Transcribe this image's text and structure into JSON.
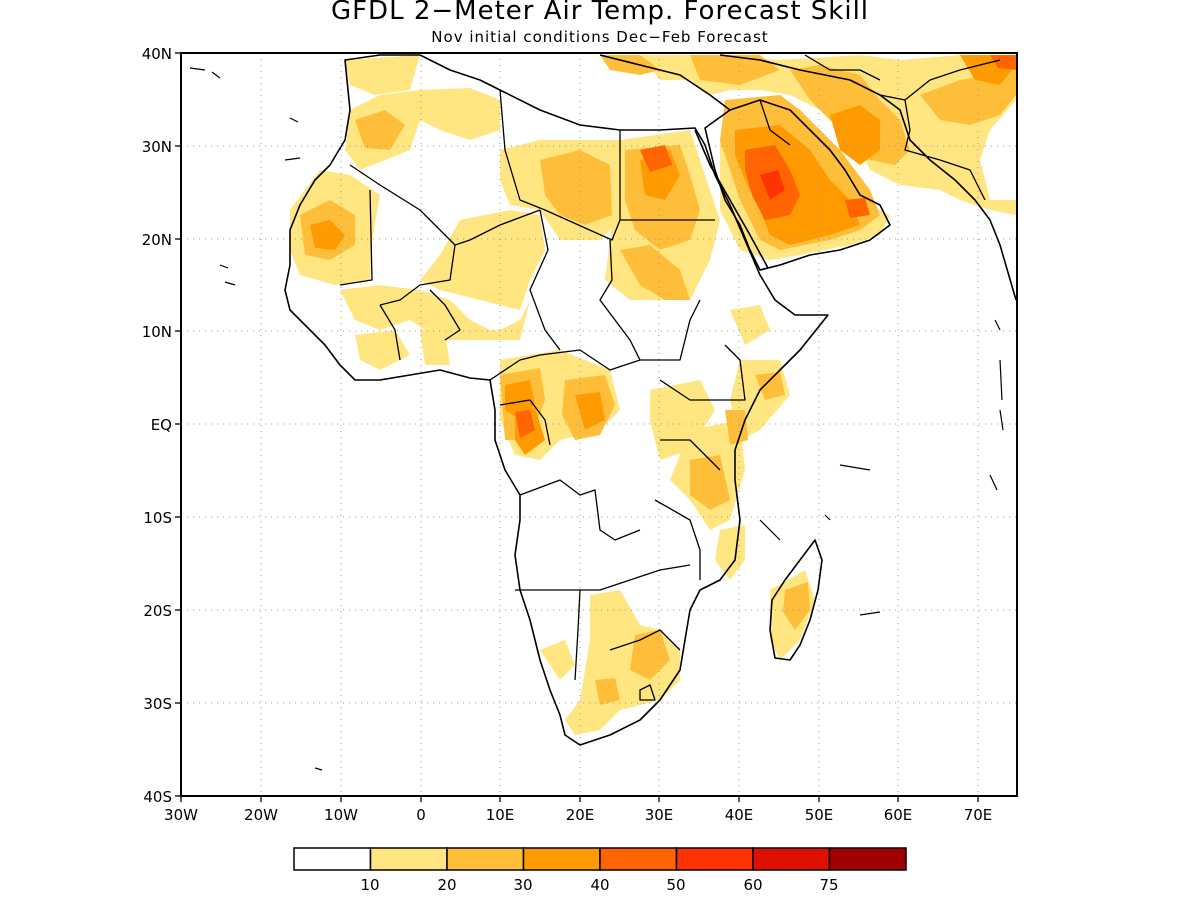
{
  "title": "GFDL 2−Meter Air Temp. Forecast Skill",
  "subtitle": "Nov initial conditions   Dec−Feb Forecast",
  "map": {
    "lat_ticks": [
      "40N",
      "30N",
      "20N",
      "10N",
      "EQ",
      "10S",
      "20S",
      "30S",
      "40S"
    ],
    "lon_ticks": [
      "30W",
      "20W",
      "10W",
      "0",
      "10E",
      "20E",
      "30E",
      "40E",
      "50E",
      "60E",
      "70E"
    ],
    "extent": {
      "lon": [
        -30,
        75
      ],
      "lat": [
        -40,
        40
      ]
    },
    "grid": "dotted"
  },
  "legend": {
    "bins": [
      "#ffffff",
      "#ffe680",
      "#ffbe3a",
      "#ff9b00",
      "#ff6400",
      "#ff3200",
      "#e01000",
      "#a00000"
    ],
    "labels": [
      "10",
      "20",
      "30",
      "40",
      "50",
      "60",
      "75"
    ]
  },
  "colors": {
    "light_yellow": "#ffe680",
    "light_orange": "#ffbe3a",
    "orange": "#ff9b00",
    "dark_orange": "#ff6400",
    "red_orange": "#ff3200"
  }
}
